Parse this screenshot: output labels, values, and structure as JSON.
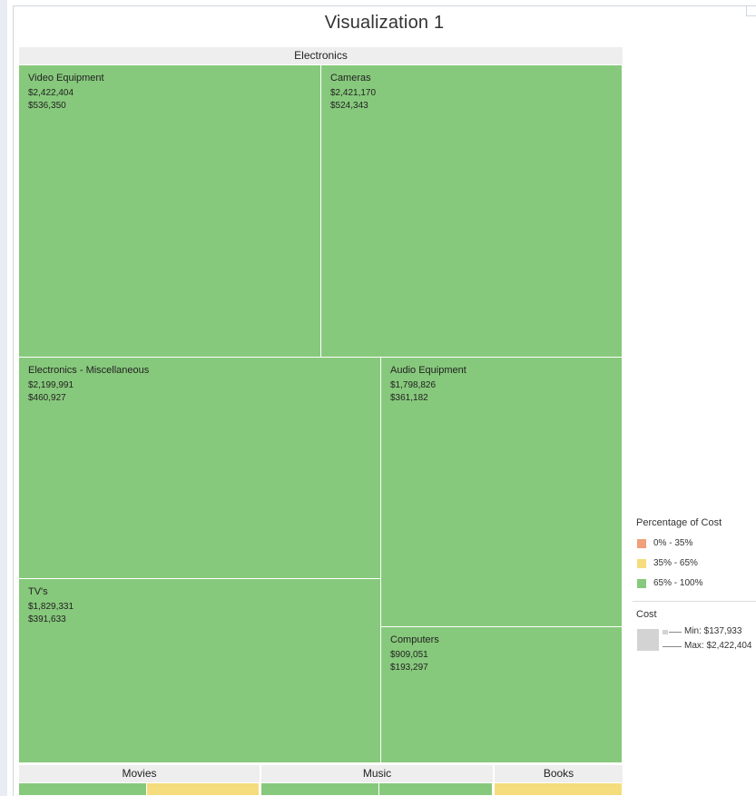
{
  "title": "Visualization 1",
  "chart_data": {
    "type": "treemap",
    "title": "Visualization 1",
    "size_measure": "Cost",
    "color_measure": "Percentage of Cost",
    "categories": [
      {
        "name": "Electronics",
        "items": [
          {
            "name": "Video Equipment",
            "value1": "$2,422,404",
            "value2": "$536,350",
            "size": 2422404,
            "band": "65% - 100%"
          },
          {
            "name": "Cameras",
            "value1": "$2,421,170",
            "value2": "$524,343",
            "size": 2421170,
            "band": "65% - 100%"
          },
          {
            "name": "Electronics - Miscellaneous",
            "value1": "$2,199,991",
            "value2": "$460,927",
            "size": 2199991,
            "band": "65% - 100%"
          },
          {
            "name": "Audio Equipment",
            "value1": "$1,798,826",
            "value2": "$361,182",
            "size": 1798826,
            "band": "65% - 100%"
          },
          {
            "name": "TV's",
            "value1": "$1,829,331",
            "value2": "$391,633",
            "size": 1829331,
            "band": "65% - 100%"
          },
          {
            "name": "Computers",
            "value1": "$909,051",
            "value2": "$193,297",
            "size": 909051,
            "band": "65% - 100%"
          }
        ]
      },
      {
        "name": "Movies",
        "items": []
      },
      {
        "name": "Music",
        "items": []
      },
      {
        "name": "Books",
        "items": []
      }
    ],
    "legend": {
      "color_title": "Percentage of Cost",
      "bands": [
        {
          "label": "0% - 35%",
          "color": "#f0a07a"
        },
        {
          "label": "35% - 65%",
          "color": "#f5dc7c"
        },
        {
          "label": "65% - 100%",
          "color": "#87c97c"
        }
      ],
      "size_title": "Cost",
      "min_label": "Min: $137,933",
      "max_label": "Max: $2,422,404"
    }
  },
  "colors": {
    "high": "#87c97c",
    "mid": "#f5dc7c",
    "low": "#f0a07a",
    "header_bg": "#eeeeee"
  }
}
